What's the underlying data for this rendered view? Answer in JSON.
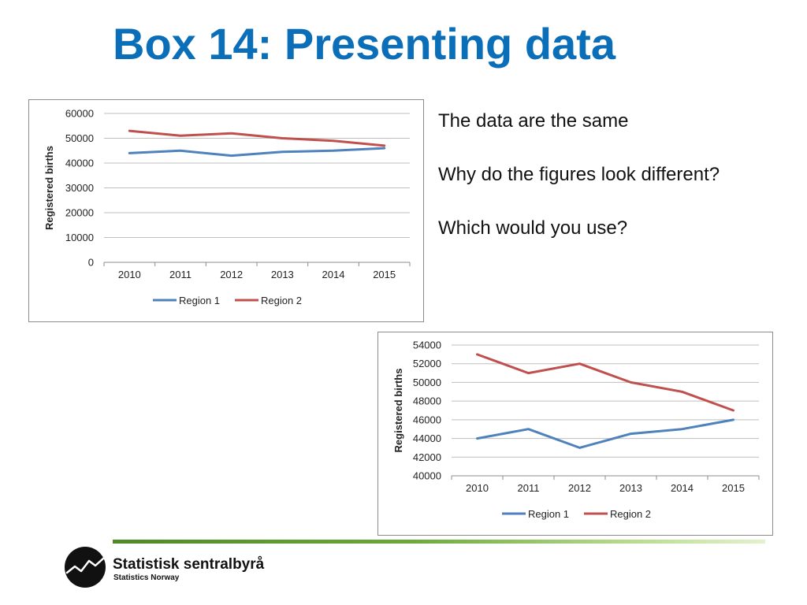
{
  "slide": {
    "title": "Box 14: Presenting data",
    "lines": [
      "The data are the same",
      "Why do the figures look different?",
      "Which would you use?"
    ]
  },
  "colors": {
    "title": "#0a6fb8",
    "region1": "#4f81bd",
    "region2": "#c0504d"
  },
  "chart_data": [
    {
      "type": "line",
      "title": "",
      "xlabel": "",
      "ylabel": "Registered births",
      "categories": [
        "2010",
        "2011",
        "2012",
        "2013",
        "2014",
        "2015"
      ],
      "ylim": [
        0,
        60000
      ],
      "yticks": [
        "0",
        "10000",
        "20000",
        "30000",
        "40000",
        "50000",
        "60000"
      ],
      "grid": true,
      "legend": "bottom",
      "series": [
        {
          "name": "Region 1",
          "values": [
            44000,
            45000,
            43000,
            44500,
            45000,
            46000
          ]
        },
        {
          "name": "Region 2",
          "values": [
            53000,
            51000,
            52000,
            50000,
            49000,
            47000
          ]
        }
      ]
    },
    {
      "type": "line",
      "title": "",
      "xlabel": "",
      "ylabel": "Registered births",
      "categories": [
        "2010",
        "2011",
        "2012",
        "2013",
        "2014",
        "2015"
      ],
      "ylim": [
        40000,
        54000
      ],
      "yticks": [
        "40000",
        "42000",
        "44000",
        "46000",
        "48000",
        "50000",
        "52000",
        "54000"
      ],
      "grid": true,
      "legend": "bottom",
      "series": [
        {
          "name": "Region 1",
          "values": [
            44000,
            45000,
            43000,
            44500,
            45000,
            46000
          ]
        },
        {
          "name": "Region 2",
          "values": [
            53000,
            51000,
            52000,
            50000,
            49000,
            47000
          ]
        }
      ]
    }
  ],
  "branding": {
    "logo_icon": "ssb-logo-icon",
    "name": "Statistisk sentralbyrå",
    "subname": "Statistics Norway"
  }
}
